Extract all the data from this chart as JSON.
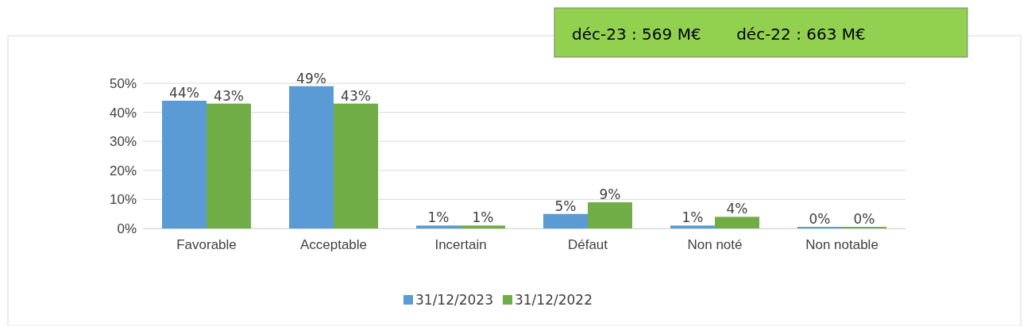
{
  "chart_data": {
    "type": "bar",
    "categories": [
      "Favorable",
      "Acceptable",
      "Incertain",
      "Défaut",
      "Non noté",
      "Non notable"
    ],
    "series": [
      {
        "name": "31/12/2023",
        "color": "#5b9bd5",
        "values": [
          44,
          49,
          1,
          5,
          1,
          0
        ],
        "value_labels": [
          "44%",
          "49%",
          "1%",
          "5%",
          "1%",
          "0%"
        ]
      },
      {
        "name": "31/12/2022",
        "color": "#70ad47",
        "values": [
          43,
          43,
          1,
          9,
          4,
          0
        ],
        "value_labels": [
          "43%",
          "43%",
          "1%",
          "9%",
          "4%",
          "0%"
        ]
      }
    ],
    "ylim": [
      0,
      50
    ],
    "yticks": [
      {
        "value": 0,
        "label": "0%"
      },
      {
        "value": 10,
        "label": "10%"
      },
      {
        "value": 20,
        "label": "20%"
      },
      {
        "value": 30,
        "label": "30%"
      },
      {
        "value": 40,
        "label": "40%"
      },
      {
        "value": 50,
        "label": "50%"
      }
    ],
    "grid": "y",
    "legend": "bottom",
    "annotations": [
      "déc-23 : 569 M€       déc-22 : 663 M€"
    ]
  }
}
